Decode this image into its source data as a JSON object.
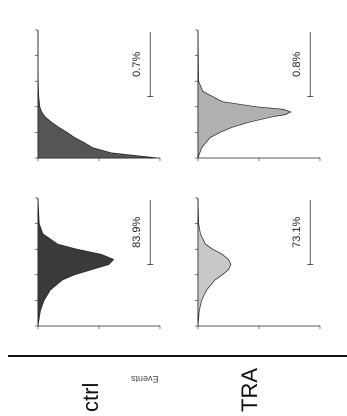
{
  "figure": {
    "groups": [
      "ctrl",
      "TRA"
    ],
    "events_label": "Events"
  },
  "chart_data": [
    {
      "type": "area",
      "panel": "ctrl-left",
      "gate_percent": "0.7%",
      "x": [
        0,
        0.2,
        0.4,
        0.6,
        0.8,
        1.0,
        1.2,
        1.4,
        1.6,
        1.8,
        2.0,
        2.4,
        3.0,
        4.0,
        5.0
      ],
      "values": [
        98,
        60,
        45,
        38,
        30,
        24,
        17,
        11,
        6,
        3,
        1.5,
        0.6,
        0.2,
        0,
        0
      ],
      "fill": "#555555",
      "xlim": [
        0,
        5
      ],
      "ylim": [
        0,
        100
      ]
    },
    {
      "type": "area",
      "panel": "ctrl-right",
      "gate_percent": "0.8%",
      "x": [
        0,
        0.4,
        0.8,
        1.0,
        1.2,
        1.4,
        1.6,
        1.7,
        1.8,
        1.9,
        2.0,
        2.2,
        2.6,
        3.0,
        5.0
      ],
      "values": [
        0,
        3,
        10,
        18,
        28,
        42,
        60,
        72,
        76,
        70,
        48,
        20,
        4,
        0.5,
        0
      ],
      "fill": "#b0b0b0",
      "xlim": [
        0,
        5
      ],
      "ylim": [
        0,
        100
      ]
    },
    {
      "type": "area",
      "panel": "TRA-left",
      "gate_percent": "83.9%",
      "x": [
        0,
        0.6,
        1.0,
        1.4,
        1.8,
        2.0,
        2.2,
        2.4,
        2.6,
        2.8,
        3.0,
        3.2,
        3.6,
        4.0,
        5.0
      ],
      "values": [
        0,
        2,
        5,
        10,
        20,
        30,
        44,
        58,
        62,
        52,
        32,
        16,
        4,
        1,
        0
      ],
      "fill": "#3a3a3a",
      "xlim": [
        0,
        5
      ],
      "ylim": [
        0,
        100
      ]
    },
    {
      "type": "area",
      "panel": "TRA-right",
      "gate_percent": "73.1%",
      "x": [
        0,
        0.6,
        1.0,
        1.4,
        1.8,
        2.0,
        2.2,
        2.4,
        2.6,
        2.8,
        3.0,
        3.2,
        3.6,
        4.0,
        5.0
      ],
      "values": [
        0,
        1,
        3,
        7,
        14,
        20,
        25,
        27,
        25,
        20,
        12,
        6,
        2,
        0.5,
        0
      ],
      "fill": "#c8c8c8",
      "xlim": [
        0,
        5
      ],
      "ylim": [
        0,
        100
      ]
    }
  ]
}
